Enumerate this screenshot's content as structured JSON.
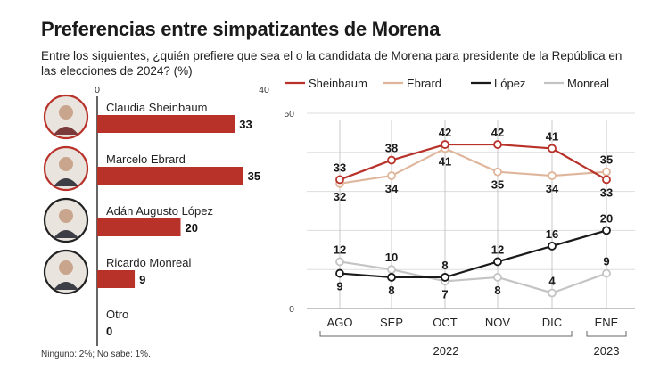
{
  "title": "Preferencias entre simpatizantes de Morena",
  "subtitle": "Entre los siguientes, ¿quién prefiere que sea el o la candidata de Morena para presidente de la República en las elecciones de 2024? (%)",
  "footnote": "Ninguno: 2%; No sabe: 1%.",
  "colors": {
    "bar": "#b9322a",
    "sheinbaum": "#b9322a",
    "ebrard": "#dfb69b",
    "lopez": "#1a1a1a",
    "monreal": "#c4c4c4",
    "grid": "#dddddd",
    "axis": "#333333"
  },
  "chart_data": [
    {
      "type": "bar",
      "orientation": "horizontal",
      "xlim": [
        0,
        40
      ],
      "tick_labels": [
        "0",
        "40"
      ],
      "categories": [
        "Claudia Sheinbaum",
        "Marcelo Ebrard",
        "Adán Augusto López",
        "Ricardo Monreal",
        "Otro"
      ],
      "values": [
        33,
        35,
        20,
        9,
        0
      ],
      "photo_icons": [
        "sheinbaum-photo-icon",
        "ebrard-photo-icon",
        "lopez-photo-icon",
        "monreal-photo-icon",
        ""
      ]
    },
    {
      "type": "line",
      "x": [
        "AGO",
        "SEP",
        "OCT",
        "NOV",
        "DIC",
        "ENE"
      ],
      "year_groups": [
        {
          "label": "2022",
          "categories": [
            "AGO",
            "SEP",
            "OCT",
            "NOV",
            "DIC"
          ]
        },
        {
          "label": "2023",
          "categories": [
            "ENE"
          ]
        }
      ],
      "ylim": [
        0,
        50
      ],
      "yticks": [
        0,
        50
      ],
      "grid": true,
      "legend_position": "top",
      "series": [
        {
          "name": "Sheinbaum",
          "values": [
            33,
            38,
            42,
            42,
            41,
            33
          ],
          "color_key": "sheinbaum",
          "label_side": [
            "above",
            "above",
            "above",
            "above",
            "above",
            "below"
          ]
        },
        {
          "name": "Ebrard",
          "values": [
            32,
            34,
            41,
            35,
            34,
            35
          ],
          "color_key": "ebrard",
          "label_side": [
            "below",
            "below",
            "below",
            "below",
            "below",
            "above"
          ]
        },
        {
          "name": "López",
          "values": [
            9,
            8,
            8,
            12,
            16,
            20
          ],
          "color_key": "lopez",
          "label_side": [
            "below",
            "below",
            "above",
            "above",
            "above",
            "above"
          ]
        },
        {
          "name": "Monreal",
          "values": [
            12,
            10,
            7,
            8,
            4,
            9
          ],
          "color_key": "monreal",
          "label_side": [
            "above",
            "above",
            "below",
            "below",
            "above",
            "above"
          ]
        }
      ]
    }
  ]
}
